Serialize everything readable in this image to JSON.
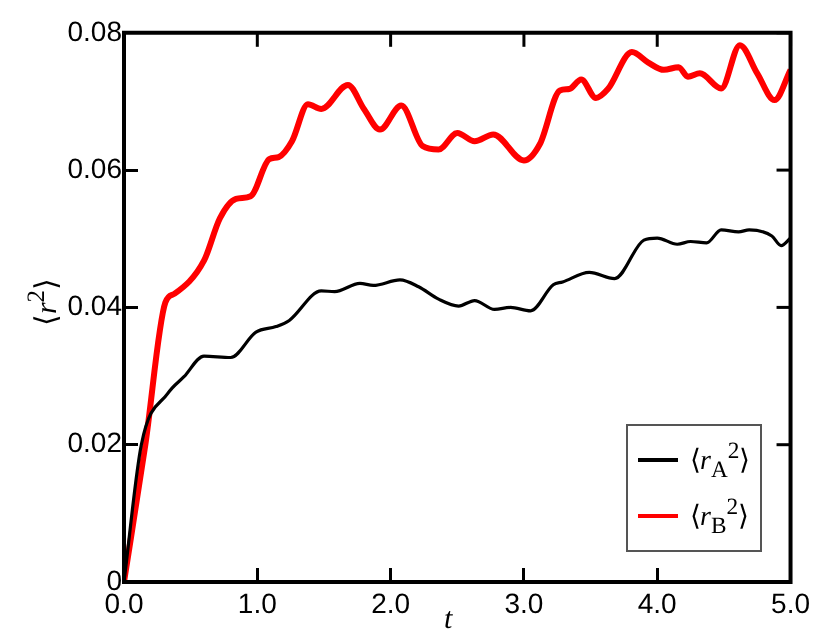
{
  "chart_data": {
    "type": "line",
    "xlabel": "t",
    "ylabel": "⟨r$^{2}$⟩",
    "xlim": [
      0,
      5
    ],
    "ylim": [
      0,
      0.08
    ],
    "xticks": [
      {
        "value": 0,
        "label": "0.0"
      },
      {
        "value": 1,
        "label": "1.0"
      },
      {
        "value": 2,
        "label": "2.0"
      },
      {
        "value": 3,
        "label": "3.0"
      },
      {
        "value": 4,
        "label": "4.0"
      },
      {
        "value": 5,
        "label": "5.0"
      }
    ],
    "yticks": [
      0,
      0.02,
      0.04,
      0.06,
      0.08
    ],
    "grid": false,
    "legend": "bottom right",
    "marker": "none",
    "line_style": "solid",
    "series": [
      {
        "name": "⟨r$_{A}$$^{2}$⟩",
        "color": "#000000",
        "x": [
          0,
          0.13,
          0.33,
          0.45,
          0.6,
          0.8,
          0.99,
          1.14,
          1.24,
          1.48,
          1.58,
          1.77,
          1.87,
          2.07,
          2.21,
          2.36,
          2.51,
          2.63,
          2.78,
          2.9,
          3.05,
          3.22,
          3.29,
          3.49,
          3.68,
          3.9,
          4.0,
          4.15,
          4.25,
          4.37,
          4.48,
          4.61,
          4.69,
          4.86,
          4.93,
          5.0
        ],
        "values": [
          0,
          0.02,
          0.0275,
          0.0299,
          0.0329,
          0.0327,
          0.0364,
          0.0372,
          0.0381,
          0.0424,
          0.0423,
          0.0435,
          0.0432,
          0.044,
          0.043,
          0.0412,
          0.0402,
          0.041,
          0.0397,
          0.04,
          0.0395,
          0.0433,
          0.0437,
          0.0451,
          0.0442,
          0.0498,
          0.0501,
          0.0492,
          0.0496,
          0.0494,
          0.0513,
          0.051,
          0.0513,
          0.0504,
          0.049,
          0.0501
        ]
      },
      {
        "name": "⟨r$_{B}$$^{2}$⟩",
        "color": "#ff0000",
        "x": [
          0,
          0.16,
          0.31,
          0.38,
          0.6,
          0.72,
          0.84,
          0.95,
          1.09,
          1.16,
          1.26,
          1.38,
          1.48,
          1.68,
          1.8,
          1.92,
          2.08,
          2.24,
          2.36,
          2.5,
          2.63,
          2.77,
          3.0,
          3.12,
          3.27,
          3.34,
          3.43,
          3.54,
          3.63,
          3.81,
          3.93,
          4.05,
          4.16,
          4.23,
          4.32,
          4.48,
          4.62,
          4.75,
          4.88,
          5.0
        ],
        "values": [
          0,
          0.02,
          0.0407,
          0.042,
          0.0468,
          0.053,
          0.0558,
          0.0562,
          0.0616,
          0.0619,
          0.0642,
          0.0696,
          0.0689,
          0.0724,
          0.0689,
          0.0659,
          0.0694,
          0.0635,
          0.063,
          0.0654,
          0.0642,
          0.0652,
          0.0614,
          0.0638,
          0.0716,
          0.0718,
          0.0732,
          0.0705,
          0.0718,
          0.0772,
          0.0757,
          0.0746,
          0.075,
          0.0736,
          0.0741,
          0.0719,
          0.0782,
          0.0741,
          0.0702,
          0.0746
        ]
      }
    ]
  }
}
